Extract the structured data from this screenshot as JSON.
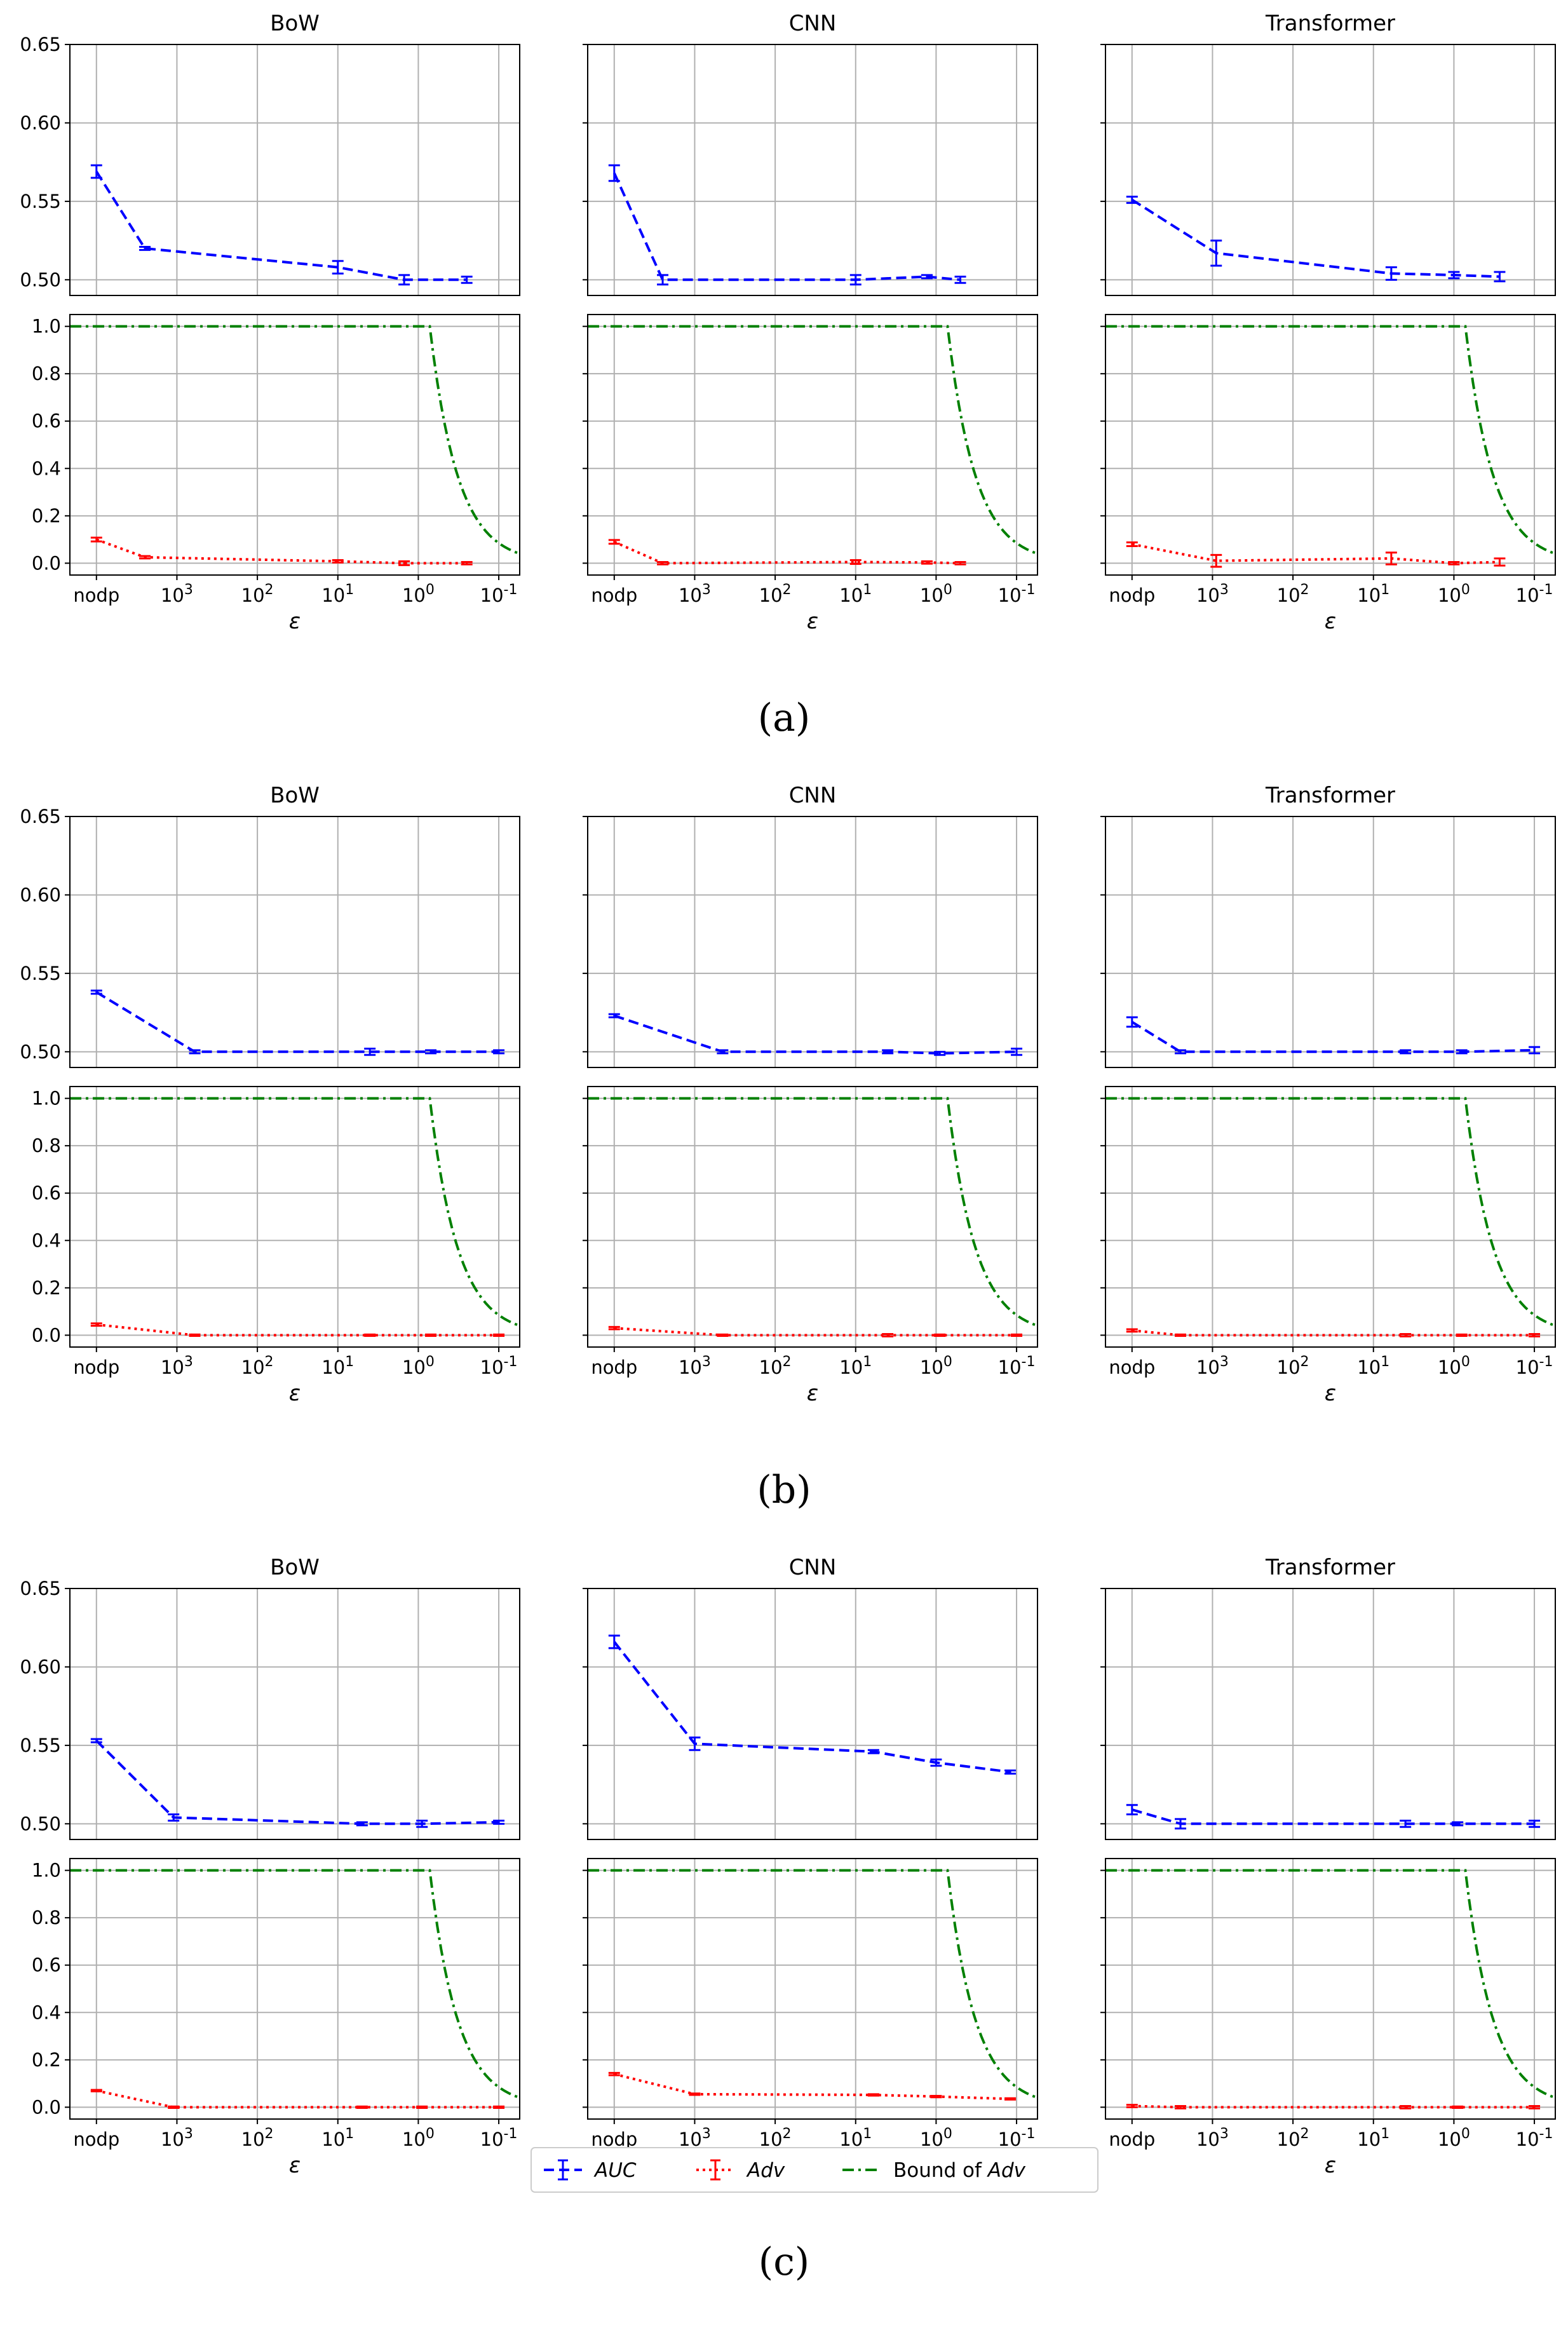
{
  "figure": {
    "captions": [
      "(a)",
      "(b)",
      "(c)"
    ],
    "legend": {
      "items": [
        {
          "label": "AUC",
          "style": "dashed",
          "color": "#0000ff",
          "italic": true
        },
        {
          "label": "Adv",
          "style": "dotted",
          "color": "#ff0000",
          "italic": true
        },
        {
          "label_prefix": "Bound of ",
          "label_italic": "Adv",
          "style": "dashdot",
          "color": "#008000"
        }
      ]
    },
    "colors": {
      "auc": "#0000ff",
      "adv": "#ff0000",
      "bound": "#008000"
    }
  },
  "chart_data": [
    {
      "type": "line",
      "group": "(a)",
      "models": [
        {
          "title": "BoW",
          "x_tick_labels": [
            "nodp",
            "10^3",
            "10^2",
            "10^1",
            "10^0",
            "10^-1"
          ],
          "xlabel": "ε",
          "auc": {
            "ylim": [
              0.49,
              0.65
            ],
            "yticks": [
              0.5,
              0.55,
              0.6,
              0.65
            ],
            "points": [
              {
                "x": "nodp",
                "y": 0.569,
                "err": 0.004
              },
              {
                "x": 2500,
                "y": 0.52,
                "err": 0.001
              },
              {
                "x": 10,
                "y": 0.508,
                "err": 0.004
              },
              {
                "x": 1.5,
                "y": 0.5,
                "err": 0.003
              },
              {
                "x": 0.25,
                "y": 0.5,
                "err": 0.002
              }
            ]
          },
          "adv": {
            "ylim": [
              -0.05,
              1.05
            ],
            "yticks": [
              0.0,
              0.2,
              0.4,
              0.6,
              0.8,
              1.0
            ],
            "points": [
              {
                "x": "nodp",
                "y": 0.1,
                "err": 0.008
              },
              {
                "x": 2500,
                "y": 0.025,
                "err": 0.005
              },
              {
                "x": 10,
                "y": 0.008,
                "err": 0.005
              },
              {
                "x": 1.5,
                "y": 0.0,
                "err": 0.008
              },
              {
                "x": 0.25,
                "y": 0.0,
                "err": 0.005
              }
            ]
          }
        },
        {
          "title": "CNN",
          "x_tick_labels": [
            "nodp",
            "10^3",
            "10^2",
            "10^1",
            "10^0",
            "10^-1"
          ],
          "xlabel": "ε",
          "auc": {
            "ylim": [
              0.49,
              0.65
            ],
            "yticks": [
              0.5,
              0.55,
              0.6,
              0.65
            ],
            "points": [
              {
                "x": "nodp",
                "y": 0.568,
                "err": 0.005
              },
              {
                "x": 2500,
                "y": 0.5,
                "err": 0.003
              },
              {
                "x": 10,
                "y": 0.5,
                "err": 0.003
              },
              {
                "x": 1.3,
                "y": 0.502,
                "err": 0.001
              },
              {
                "x": 0.5,
                "y": 0.5,
                "err": 0.002
              }
            ]
          },
          "adv": {
            "ylim": [
              -0.05,
              1.05
            ],
            "yticks": [
              0.0,
              0.2,
              0.4,
              0.6,
              0.8,
              1.0
            ],
            "points": [
              {
                "x": "nodp",
                "y": 0.09,
                "err": 0.008
              },
              {
                "x": 2500,
                "y": 0.0,
                "err": 0.005
              },
              {
                "x": 10,
                "y": 0.005,
                "err": 0.008
              },
              {
                "x": 1.3,
                "y": 0.003,
                "err": 0.005
              },
              {
                "x": 0.5,
                "y": 0.0,
                "err": 0.005
              }
            ]
          }
        },
        {
          "title": "Transformer",
          "x_tick_labels": [
            "nodp",
            "10^3",
            "10^2",
            "10^1",
            "10^0",
            "10^-1"
          ],
          "xlabel": "ε",
          "auc": {
            "ylim": [
              0.49,
              0.65
            ],
            "yticks": [
              0.5,
              0.55,
              0.6,
              0.65
            ],
            "points": [
              {
                "x": "nodp",
                "y": 0.551,
                "err": 0.002
              },
              {
                "x": 900,
                "y": 0.517,
                "err": 0.008
              },
              {
                "x": 6,
                "y": 0.504,
                "err": 0.004
              },
              {
                "x": 1.0,
                "y": 0.503,
                "err": 0.002
              },
              {
                "x": 0.27,
                "y": 0.502,
                "err": 0.003
              }
            ]
          },
          "adv": {
            "ylim": [
              -0.05,
              1.05
            ],
            "yticks": [
              0.0,
              0.2,
              0.4,
              0.6,
              0.8,
              1.0
            ],
            "points": [
              {
                "x": "nodp",
                "y": 0.08,
                "err": 0.008
              },
              {
                "x": 900,
                "y": 0.01,
                "err": 0.025
              },
              {
                "x": 6,
                "y": 0.02,
                "err": 0.025
              },
              {
                "x": 1.0,
                "y": 0.0,
                "err": 0.005
              },
              {
                "x": 0.27,
                "y": 0.005,
                "err": 0.015
              }
            ]
          }
        }
      ]
    },
    {
      "type": "line",
      "group": "(b)",
      "models": [
        {
          "title": "BoW",
          "x_tick_labels": [
            "nodp",
            "10^3",
            "10^2",
            "10^1",
            "10^0",
            "10^-1"
          ],
          "xlabel": "ε",
          "auc": {
            "ylim": [
              0.49,
              0.65
            ],
            "yticks": [
              0.5,
              0.55,
              0.6,
              0.65
            ],
            "points": [
              {
                "x": "nodp",
                "y": 0.538,
                "err": 0.001
              },
              {
                "x": 600,
                "y": 0.5,
                "err": 0.001
              },
              {
                "x": 4,
                "y": 0.5,
                "err": 0.002
              },
              {
                "x": 0.7,
                "y": 0.5,
                "err": 0.001
              },
              {
                "x": 0.1,
                "y": 0.5,
                "err": 0.001
              }
            ]
          },
          "adv": {
            "ylim": [
              -0.05,
              1.05
            ],
            "yticks": [
              0.0,
              0.2,
              0.4,
              0.6,
              0.8,
              1.0
            ],
            "points": [
              {
                "x": "nodp",
                "y": 0.045,
                "err": 0.005
              },
              {
                "x": 600,
                "y": 0.0,
                "err": 0.003
              },
              {
                "x": 4,
                "y": 0.0,
                "err": 0.003
              },
              {
                "x": 0.7,
                "y": 0.0,
                "err": 0.003
              },
              {
                "x": 0.1,
                "y": 0.0,
                "err": 0.003
              }
            ]
          }
        },
        {
          "title": "CNN",
          "x_tick_labels": [
            "nodp",
            "10^3",
            "10^2",
            "10^1",
            "10^0",
            "10^-1"
          ],
          "xlabel": "ε",
          "auc": {
            "ylim": [
              0.49,
              0.65
            ],
            "yticks": [
              0.5,
              0.55,
              0.6,
              0.65
            ],
            "points": [
              {
                "x": "nodp",
                "y": 0.523,
                "err": 0.001
              },
              {
                "x": 450,
                "y": 0.5,
                "err": 0.001
              },
              {
                "x": 4,
                "y": 0.5,
                "err": 0.001
              },
              {
                "x": 0.9,
                "y": 0.499,
                "err": 0.001
              },
              {
                "x": 0.1,
                "y": 0.5,
                "err": 0.002
              }
            ]
          },
          "adv": {
            "ylim": [
              -0.05,
              1.05
            ],
            "yticks": [
              0.0,
              0.2,
              0.4,
              0.6,
              0.8,
              1.0
            ],
            "points": [
              {
                "x": "nodp",
                "y": 0.03,
                "err": 0.005
              },
              {
                "x": 450,
                "y": 0.0,
                "err": 0.003
              },
              {
                "x": 4,
                "y": 0.0,
                "err": 0.005
              },
              {
                "x": 0.9,
                "y": 0.0,
                "err": 0.003
              },
              {
                "x": 0.1,
                "y": 0.0,
                "err": 0.003
              }
            ]
          }
        },
        {
          "title": "Transformer",
          "x_tick_labels": [
            "nodp",
            "10^3",
            "10^2",
            "10^1",
            "10^0",
            "10^-1"
          ],
          "xlabel": "ε",
          "auc": {
            "ylim": [
              0.49,
              0.65
            ],
            "yticks": [
              0.5,
              0.55,
              0.6,
              0.65
            ],
            "points": [
              {
                "x": "nodp",
                "y": 0.519,
                "err": 0.003
              },
              {
                "x": 2500,
                "y": 0.5,
                "err": 0.001
              },
              {
                "x": 4,
                "y": 0.5,
                "err": 0.001
              },
              {
                "x": 0.8,
                "y": 0.5,
                "err": 0.001
              },
              {
                "x": 0.1,
                "y": 0.501,
                "err": 0.002
              }
            ]
          },
          "adv": {
            "ylim": [
              -0.05,
              1.05
            ],
            "yticks": [
              0.0,
              0.2,
              0.4,
              0.6,
              0.8,
              1.0
            ],
            "points": [
              {
                "x": "nodp",
                "y": 0.02,
                "err": 0.005
              },
              {
                "x": 2500,
                "y": 0.0,
                "err": 0.003
              },
              {
                "x": 4,
                "y": 0.0,
                "err": 0.005
              },
              {
                "x": 0.8,
                "y": 0.0,
                "err": 0.003
              },
              {
                "x": 0.1,
                "y": 0.0,
                "err": 0.005
              }
            ]
          }
        }
      ]
    },
    {
      "type": "line",
      "group": "(c)",
      "models": [
        {
          "title": "BoW",
          "x_tick_labels": [
            "nodp",
            "10^3",
            "10^2",
            "10^1",
            "10^0",
            "10^-1"
          ],
          "xlabel": "ε",
          "auc": {
            "ylim": [
              0.49,
              0.65
            ],
            "yticks": [
              0.5,
              0.55,
              0.6,
              0.65
            ],
            "points": [
              {
                "x": "nodp",
                "y": 0.553,
                "err": 0.001
              },
              {
                "x": 1100,
                "y": 0.504,
                "err": 0.002
              },
              {
                "x": 5,
                "y": 0.5,
                "err": 0.001
              },
              {
                "x": 0.9,
                "y": 0.5,
                "err": 0.002
              },
              {
                "x": 0.1,
                "y": 0.501,
                "err": 0.001
              }
            ]
          },
          "adv": {
            "ylim": [
              -0.05,
              1.05
            ],
            "yticks": [
              0.0,
              0.2,
              0.4,
              0.6,
              0.8,
              1.0
            ],
            "points": [
              {
                "x": "nodp",
                "y": 0.07,
                "err": 0.003
              },
              {
                "x": 1100,
                "y": 0.0,
                "err": 0.003
              },
              {
                "x": 5,
                "y": 0.0,
                "err": 0.003
              },
              {
                "x": 0.9,
                "y": 0.0,
                "err": 0.003
              },
              {
                "x": 0.1,
                "y": 0.0,
                "err": 0.003
              }
            ]
          }
        },
        {
          "title": "CNN",
          "x_tick_labels": [
            "nodp",
            "10^3",
            "10^2",
            "10^1",
            "10^0",
            "10^-1"
          ],
          "xlabel": "ε",
          "auc": {
            "ylim": [
              0.49,
              0.65
            ],
            "yticks": [
              0.5,
              0.55,
              0.6,
              0.65
            ],
            "points": [
              {
                "x": "nodp",
                "y": 0.616,
                "err": 0.004
              },
              {
                "x": 1000,
                "y": 0.551,
                "err": 0.004
              },
              {
                "x": 6,
                "y": 0.546,
                "err": 0.001
              },
              {
                "x": 1.0,
                "y": 0.539,
                "err": 0.002
              },
              {
                "x": 0.12,
                "y": 0.533,
                "err": 0.001
              }
            ]
          },
          "adv": {
            "ylim": [
              -0.05,
              1.05
            ],
            "yticks": [
              0.0,
              0.2,
              0.4,
              0.6,
              0.8,
              1.0
            ],
            "points": [
              {
                "x": "nodp",
                "y": 0.14,
                "err": 0.005
              },
              {
                "x": 1000,
                "y": 0.055,
                "err": 0.003
              },
              {
                "x": 6,
                "y": 0.052,
                "err": 0.003
              },
              {
                "x": 1.0,
                "y": 0.045,
                "err": 0.003
              },
              {
                "x": 0.12,
                "y": 0.035,
                "err": 0.003
              }
            ]
          }
        },
        {
          "title": "Transformer",
          "x_tick_labels": [
            "nodp",
            "10^3",
            "10^2",
            "10^1",
            "10^0",
            "10^-1"
          ],
          "xlabel": "ε",
          "auc": {
            "ylim": [
              0.49,
              0.65
            ],
            "yticks": [
              0.5,
              0.55,
              0.6,
              0.65
            ],
            "points": [
              {
                "x": "nodp",
                "y": 0.509,
                "err": 0.003
              },
              {
                "x": 2500,
                "y": 0.5,
                "err": 0.003
              },
              {
                "x": 4,
                "y": 0.5,
                "err": 0.002
              },
              {
                "x": 0.9,
                "y": 0.5,
                "err": 0.001
              },
              {
                "x": 0.1,
                "y": 0.5,
                "err": 0.002
              }
            ]
          },
          "adv": {
            "ylim": [
              -0.05,
              1.05
            ],
            "yticks": [
              0.0,
              0.2,
              0.4,
              0.6,
              0.8,
              1.0
            ],
            "points": [
              {
                "x": "nodp",
                "y": 0.005,
                "err": 0.005
              },
              {
                "x": 2500,
                "y": 0.0,
                "err": 0.005
              },
              {
                "x": 4,
                "y": 0.0,
                "err": 0.005
              },
              {
                "x": 0.9,
                "y": 0.0,
                "err": 0.003
              },
              {
                "x": 0.1,
                "y": 0.0,
                "err": 0.005
              }
            ]
          }
        }
      ]
    }
  ]
}
